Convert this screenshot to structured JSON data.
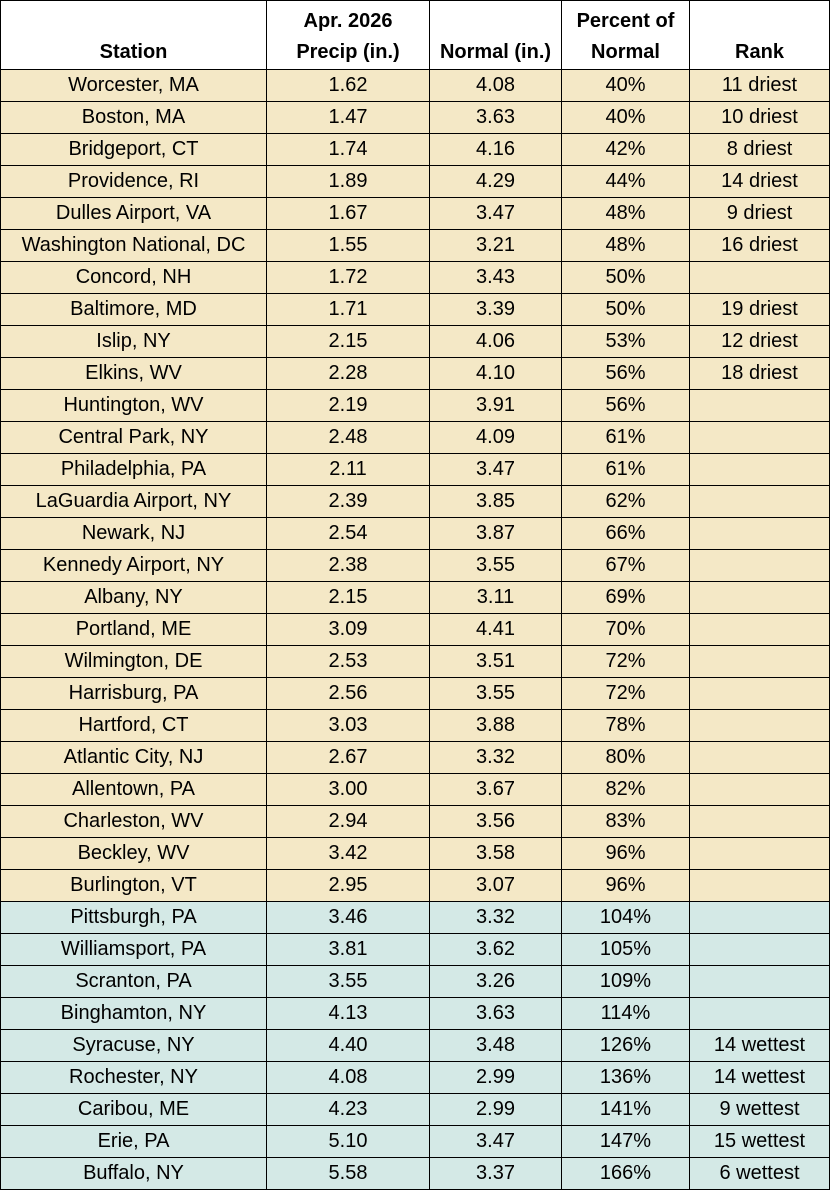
{
  "colors": {
    "dry_fill": "#f4e8c6",
    "wet_fill": "#d4e9e6",
    "border": "#000000"
  },
  "header": {
    "station": "Station",
    "precip_line1": "Apr. 2026",
    "precip_line2": "Precip (in.)",
    "normal": "Normal (in.)",
    "pct_line1": "Percent of",
    "pct_line2": "Normal",
    "rank": "Rank"
  },
  "rows": [
    {
      "station": "Worcester, MA",
      "precip": "1.62",
      "normal": "4.08",
      "pct": "40%",
      "rank": "11 driest",
      "group": "dry"
    },
    {
      "station": "Boston, MA",
      "precip": "1.47",
      "normal": "3.63",
      "pct": "40%",
      "rank": "10 driest",
      "group": "dry"
    },
    {
      "station": "Bridgeport, CT",
      "precip": "1.74",
      "normal": "4.16",
      "pct": "42%",
      "rank": "8 driest",
      "group": "dry"
    },
    {
      "station": "Providence, RI",
      "precip": "1.89",
      "normal": "4.29",
      "pct": "44%",
      "rank": "14 driest",
      "group": "dry"
    },
    {
      "station": "Dulles Airport, VA",
      "precip": "1.67",
      "normal": "3.47",
      "pct": "48%",
      "rank": "9 driest",
      "group": "dry"
    },
    {
      "station": "Washington National, DC",
      "precip": "1.55",
      "normal": "3.21",
      "pct": "48%",
      "rank": "16 driest",
      "group": "dry"
    },
    {
      "station": "Concord, NH",
      "precip": "1.72",
      "normal": "3.43",
      "pct": "50%",
      "rank": "",
      "group": "dry"
    },
    {
      "station": "Baltimore, MD",
      "precip": "1.71",
      "normal": "3.39",
      "pct": "50%",
      "rank": "19 driest",
      "group": "dry"
    },
    {
      "station": "Islip, NY",
      "precip": "2.15",
      "normal": "4.06",
      "pct": "53%",
      "rank": "12 driest",
      "group": "dry"
    },
    {
      "station": "Elkins, WV",
      "precip": "2.28",
      "normal": "4.10",
      "pct": "56%",
      "rank": "18 driest",
      "group": "dry"
    },
    {
      "station": "Huntington, WV",
      "precip": "2.19",
      "normal": "3.91",
      "pct": "56%",
      "rank": "",
      "group": "dry"
    },
    {
      "station": "Central Park, NY",
      "precip": "2.48",
      "normal": "4.09",
      "pct": "61%",
      "rank": "",
      "group": "dry"
    },
    {
      "station": "Philadelphia, PA",
      "precip": "2.11",
      "normal": "3.47",
      "pct": "61%",
      "rank": "",
      "group": "dry"
    },
    {
      "station": "LaGuardia Airport, NY",
      "precip": "2.39",
      "normal": "3.85",
      "pct": "62%",
      "rank": "",
      "group": "dry"
    },
    {
      "station": "Newark, NJ",
      "precip": "2.54",
      "normal": "3.87",
      "pct": "66%",
      "rank": "",
      "group": "dry"
    },
    {
      "station": "Kennedy Airport, NY",
      "precip": "2.38",
      "normal": "3.55",
      "pct": "67%",
      "rank": "",
      "group": "dry"
    },
    {
      "station": "Albany, NY",
      "precip": "2.15",
      "normal": "3.11",
      "pct": "69%",
      "rank": "",
      "group": "dry"
    },
    {
      "station": "Portland, ME",
      "precip": "3.09",
      "normal": "4.41",
      "pct": "70%",
      "rank": "",
      "group": "dry"
    },
    {
      "station": "Wilmington, DE",
      "precip": "2.53",
      "normal": "3.51",
      "pct": "72%",
      "rank": "",
      "group": "dry"
    },
    {
      "station": "Harrisburg, PA",
      "precip": "2.56",
      "normal": "3.55",
      "pct": "72%",
      "rank": "",
      "group": "dry"
    },
    {
      "station": "Hartford, CT",
      "precip": "3.03",
      "normal": "3.88",
      "pct": "78%",
      "rank": "",
      "group": "dry"
    },
    {
      "station": "Atlantic City, NJ",
      "precip": "2.67",
      "normal": "3.32",
      "pct": "80%",
      "rank": "",
      "group": "dry"
    },
    {
      "station": "Allentown, PA",
      "precip": "3.00",
      "normal": "3.67",
      "pct": "82%",
      "rank": "",
      "group": "dry"
    },
    {
      "station": "Charleston, WV",
      "precip": "2.94",
      "normal": "3.56",
      "pct": "83%",
      "rank": "",
      "group": "dry"
    },
    {
      "station": "Beckley, WV",
      "precip": "3.42",
      "normal": "3.58",
      "pct": "96%",
      "rank": "",
      "group": "dry"
    },
    {
      "station": "Burlington, VT",
      "precip": "2.95",
      "normal": "3.07",
      "pct": "96%",
      "rank": "",
      "group": "dry"
    },
    {
      "station": "Pittsburgh, PA",
      "precip": "3.46",
      "normal": "3.32",
      "pct": "104%",
      "rank": "",
      "group": "wet"
    },
    {
      "station": "Williamsport, PA",
      "precip": "3.81",
      "normal": "3.62",
      "pct": "105%",
      "rank": "",
      "group": "wet"
    },
    {
      "station": "Scranton, PA",
      "precip": "3.55",
      "normal": "3.26",
      "pct": "109%",
      "rank": "",
      "group": "wet"
    },
    {
      "station": "Binghamton, NY",
      "precip": "4.13",
      "normal": "3.63",
      "pct": "114%",
      "rank": "",
      "group": "wet"
    },
    {
      "station": "Syracuse, NY",
      "precip": "4.40",
      "normal": "3.48",
      "pct": "126%",
      "rank": "14 wettest",
      "group": "wet"
    },
    {
      "station": "Rochester, NY",
      "precip": "4.08",
      "normal": "2.99",
      "pct": "136%",
      "rank": "14 wettest",
      "group": "wet"
    },
    {
      "station": "Caribou, ME",
      "precip": "4.23",
      "normal": "2.99",
      "pct": "141%",
      "rank": "9 wettest",
      "group": "wet"
    },
    {
      "station": "Erie, PA",
      "precip": "5.10",
      "normal": "3.47",
      "pct": "147%",
      "rank": "15 wettest",
      "group": "wet"
    },
    {
      "station": "Buffalo, NY",
      "precip": "5.58",
      "normal": "3.37",
      "pct": "166%",
      "rank": "6 wettest",
      "group": "wet"
    }
  ]
}
